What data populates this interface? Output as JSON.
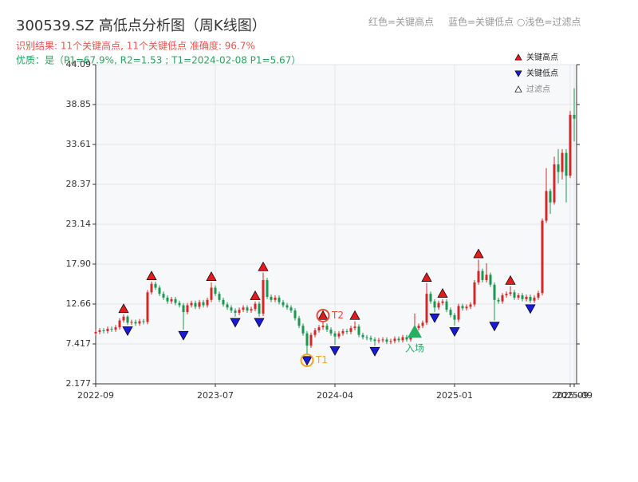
{
  "chart_data": {
    "type": "candlestick",
    "title": "300539.SZ 高低点分析图（周K线图）",
    "subtitle": "识别结果: 11个关键高点, 11个关键低点   准确度: 96.7%",
    "note": "优质：是（P1=67.9%, R2=1.53 ; T1=2024-02-08 P1=5.67）",
    "header_legend": [
      "红色=关键高点",
      "蓝色=关键低点",
      "○浅色=过滤点"
    ],
    "up_color": "#d62728",
    "down_color": "#1a9850",
    "candles": {
      "open": [
        8.8,
        9.0,
        9.2,
        9.1,
        9.4,
        9.3,
        9.6,
        10.5,
        11.0,
        10.2,
        10.3,
        10.1,
        10.4,
        10.3,
        14.2,
        15.3,
        14.8,
        14.0,
        13.5,
        13.0,
        13.3,
        12.8,
        12.5,
        11.6,
        12.5,
        12.8,
        12.3,
        12.9,
        12.5,
        13.2,
        14.8,
        14.0,
        13.2,
        12.6,
        12.2,
        11.8,
        11.5,
        11.9,
        12.2,
        11.8,
        12.0,
        12.7,
        11.4,
        15.8,
        13.6,
        13.2,
        13.5,
        12.9,
        12.5,
        12.2,
        11.8,
        10.8,
        9.8,
        8.8,
        7.2,
        8.6,
        9.2,
        9.6,
        9.8,
        9.3,
        8.8,
        8.4,
        8.8,
        9.1,
        9.0,
        9.5,
        9.7,
        8.6,
        8.3,
        8.2,
        8.0,
        7.8,
        7.9,
        8.0,
        7.7,
        7.8,
        8.1,
        7.9,
        8.3,
        8.0,
        8.6,
        9.5,
        9.8,
        10.2,
        14.0,
        13.0,
        12.2,
        12.8,
        13.0,
        11.9,
        11.2,
        10.6,
        12.4,
        12.1,
        12.3,
        12.6,
        15.5,
        17.0,
        15.8,
        16.5,
        15.2,
        13.2,
        13.0,
        13.8,
        14.0,
        14.2,
        13.5,
        13.8,
        13.3,
        13.6,
        13.1,
        13.5,
        14.1,
        23.6,
        27.5,
        26.0,
        31.0,
        30.0,
        32.5,
        29.5,
        37.5
      ],
      "high": [
        9.3,
        9.5,
        9.5,
        9.7,
        9.7,
        9.9,
        10.8,
        11.3,
        11.2,
        10.6,
        10.6,
        10.7,
        10.7,
        14.5,
        15.6,
        15.6,
        15.1,
        14.3,
        13.8,
        13.6,
        13.6,
        13.1,
        12.8,
        12.8,
        13.1,
        13.1,
        13.2,
        13.2,
        13.5,
        15.5,
        15.1,
        14.3,
        13.5,
        12.9,
        12.5,
        12.1,
        12.2,
        12.5,
        12.5,
        12.3,
        13.0,
        13.0,
        16.8,
        16.1,
        13.9,
        13.8,
        13.8,
        13.2,
        12.8,
        12.5,
        12.1,
        11.1,
        10.1,
        9.1,
        8.9,
        9.5,
        9.9,
        10.4,
        10.1,
        9.6,
        9.1,
        9.1,
        9.4,
        9.4,
        9.8,
        10.4,
        10.0,
        8.9,
        8.6,
        8.5,
        8.3,
        8.2,
        8.3,
        8.3,
        8.1,
        8.4,
        8.4,
        8.6,
        8.6,
        8.9,
        11.4,
        10.1,
        10.5,
        15.4,
        14.3,
        13.3,
        13.1,
        13.3,
        13.3,
        12.2,
        11.5,
        12.7,
        12.7,
        12.6,
        12.9,
        15.8,
        18.5,
        17.3,
        18.0,
        16.8,
        15.5,
        13.5,
        14.1,
        14.3,
        15.0,
        14.5,
        14.1,
        14.1,
        13.9,
        13.9,
        13.8,
        14.4,
        23.9,
        30.5,
        27.8,
        32.0,
        33.0,
        33.0,
        33.0,
        38.0,
        41.0
      ],
      "low": [
        8.5,
        8.7,
        8.8,
        8.8,
        9.0,
        9.0,
        9.3,
        10.2,
        9.9,
        9.9,
        9.8,
        9.8,
        10.0,
        10.0,
        13.9,
        14.5,
        13.7,
        13.2,
        12.7,
        12.7,
        12.5,
        12.2,
        9.3,
        11.3,
        12.2,
        12.0,
        12.0,
        12.2,
        12.2,
        12.9,
        13.7,
        12.9,
        12.3,
        11.9,
        11.5,
        11.0,
        11.2,
        11.6,
        11.5,
        11.5,
        11.7,
        11.0,
        11.1,
        13.3,
        12.9,
        12.9,
        12.6,
        12.2,
        11.9,
        11.5,
        10.5,
        9.5,
        8.5,
        6.0,
        6.9,
        8.3,
        8.9,
        9.3,
        9.0,
        8.5,
        7.3,
        8.1,
        8.5,
        8.7,
        8.7,
        9.2,
        8.3,
        8.0,
        7.9,
        7.7,
        7.2,
        7.5,
        7.6,
        7.4,
        7.4,
        7.5,
        7.6,
        7.6,
        7.7,
        7.7,
        8.3,
        9.2,
        9.5,
        9.9,
        12.7,
        11.6,
        11.9,
        12.5,
        11.6,
        10.9,
        9.8,
        10.3,
        11.8,
        11.8,
        12.0,
        12.3,
        15.2,
        15.5,
        15.5,
        14.9,
        10.5,
        12.7,
        12.7,
        13.5,
        13.7,
        13.2,
        13.2,
        13.0,
        13.0,
        12.8,
        12.8,
        13.2,
        13.8,
        23.3,
        24.5,
        25.7,
        28.5,
        29.0,
        26.0,
        29.2,
        34.0
      ],
      "close": [
        9.0,
        9.2,
        9.1,
        9.4,
        9.3,
        9.6,
        10.5,
        11.0,
        10.2,
        10.3,
        10.1,
        10.4,
        10.3,
        14.2,
        15.3,
        14.8,
        14.0,
        13.5,
        13.0,
        13.3,
        12.8,
        12.5,
        11.6,
        12.5,
        12.8,
        12.3,
        12.9,
        12.5,
        13.2,
        14.8,
        14.0,
        13.2,
        12.6,
        12.2,
        11.8,
        11.5,
        11.9,
        12.2,
        11.8,
        12.0,
        12.7,
        11.4,
        15.8,
        13.6,
        13.2,
        13.5,
        12.9,
        12.5,
        12.2,
        11.8,
        10.8,
        9.8,
        8.8,
        7.2,
        8.6,
        9.2,
        9.6,
        9.8,
        9.3,
        8.8,
        8.4,
        8.8,
        9.1,
        9.0,
        9.5,
        9.7,
        8.6,
        8.3,
        8.2,
        8.0,
        7.8,
        7.9,
        8.0,
        7.7,
        7.8,
        8.1,
        7.9,
        8.3,
        8.0,
        8.6,
        9.5,
        9.8,
        10.2,
        14.0,
        13.0,
        12.2,
        12.8,
        13.0,
        11.9,
        11.2,
        10.6,
        12.4,
        12.1,
        12.3,
        12.6,
        15.5,
        17.0,
        15.8,
        16.5,
        15.2,
        13.2,
        13.0,
        13.8,
        14.0,
        14.2,
        13.5,
        13.8,
        13.3,
        13.6,
        13.1,
        13.5,
        14.1,
        23.6,
        27.5,
        26.0,
        31.0,
        30.0,
        32.5,
        29.5,
        37.5,
        37.0
      ]
    },
    "xlim": [
      0,
      120
    ],
    "xticks": [
      {
        "value": 0,
        "label": "2022-09"
      },
      {
        "value": 30,
        "label": "2023-07"
      },
      {
        "value": 60,
        "label": "2024-04"
      },
      {
        "value": 90,
        "label": "2025-01"
      },
      {
        "value": 119,
        "label": "2025-09"
      },
      {
        "value": 120,
        "label": "2025-09"
      }
    ],
    "ylim": [
      2.177,
      44.09
    ],
    "yticks": [
      2.177,
      7.417,
      12.66,
      {
        "value": 17.9,
        "label": "17.90"
      },
      23.14,
      28.37,
      33.61,
      38.85,
      44.09
    ],
    "grid": true,
    "highs": [
      {
        "index": 7,
        "price": 11.3
      },
      {
        "index": 14,
        "price": 15.6
      },
      {
        "index": 29,
        "price": 15.5
      },
      {
        "index": 40,
        "price": 13.0
      },
      {
        "index": 42,
        "price": 16.8
      },
      {
        "index": 57,
        "price": 10.4
      },
      {
        "index": 65,
        "price": 10.4
      },
      {
        "index": 83,
        "price": 15.4
      },
      {
        "index": 87,
        "price": 13.3
      },
      {
        "index": 96,
        "price": 18.5
      },
      {
        "index": 104,
        "price": 15.0
      }
    ],
    "lows": [
      {
        "index": 8,
        "price": 9.9
      },
      {
        "index": 22,
        "price": 9.3
      },
      {
        "index": 35,
        "price": 11.0
      },
      {
        "index": 41,
        "price": 11.0
      },
      {
        "index": 53,
        "price": 6.0
      },
      {
        "index": 60,
        "price": 7.3
      },
      {
        "index": 70,
        "price": 7.2
      },
      {
        "index": 85,
        "price": 11.6
      },
      {
        "index": 90,
        "price": 9.8
      },
      {
        "index": 100,
        "price": 10.5
      },
      {
        "index": 109,
        "price": 12.8
      }
    ],
    "high_color": "#e41a1c",
    "low_color": "#1a1ad6",
    "annotations": [
      {
        "label": "T1",
        "index": 53,
        "price": 6.0,
        "color": "#f5a623",
        "kind": "low"
      },
      {
        "label": "T2",
        "index": 57,
        "price": 10.4,
        "color": "#e74c3c",
        "kind": "high"
      },
      {
        "label": "入场",
        "index": 80,
        "price": 9.0,
        "color": "#27ae60",
        "kind": "entry"
      }
    ],
    "legend": {
      "position": "upper right",
      "items": [
        {
          "name": "关键高点",
          "color": "#e41a1c",
          "marker": "up"
        },
        {
          "name": "关键低点",
          "color": "#1a1ad6",
          "marker": "down"
        },
        {
          "name": "过滤点",
          "color": "#ffffff",
          "marker": "up"
        }
      ]
    }
  }
}
